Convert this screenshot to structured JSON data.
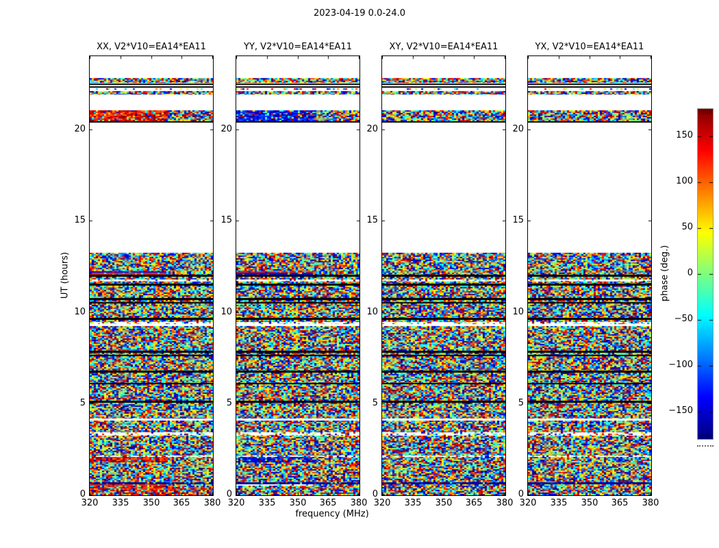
{
  "figure": {
    "title": "2023-04-19 0.0-24.0",
    "background": "#ffffff"
  },
  "axes": {
    "x": {
      "label": "frequency (MHz)",
      "range": [
        320,
        380
      ],
      "ticks": [
        {
          "value": 320,
          "label": "320"
        },
        {
          "value": 335,
          "label": "335"
        },
        {
          "value": 350,
          "label": "350"
        },
        {
          "value": 365,
          "label": "365"
        },
        {
          "value": 380,
          "label": "380"
        }
      ]
    },
    "y": {
      "label": "UT (hours)",
      "range": [
        0,
        24
      ],
      "ticks": [
        {
          "value": 0,
          "label": "0"
        },
        {
          "value": 5,
          "label": "5"
        },
        {
          "value": 10,
          "label": "10"
        },
        {
          "value": 15,
          "label": "15"
        },
        {
          "value": 20,
          "label": "20"
        }
      ]
    }
  },
  "panels": [
    {
      "pol": "XX",
      "title": "XX, V2*V10=EA14*EA11"
    },
    {
      "pol": "YY",
      "title": "YY, V2*V10=EA14*EA11"
    },
    {
      "pol": "XY",
      "title": "XY, V2*V10=EA14*EA11"
    },
    {
      "pol": "YX",
      "title": "YX, V2*V10=EA14*EA11"
    }
  ],
  "colorbar": {
    "label": "phase (deg.)",
    "range": [
      -180,
      180
    ],
    "colormap": "jet",
    "colors_top_to_bottom": [
      "#800000",
      "#ff0000",
      "#ff8000",
      "#ffff00",
      "#80ff80",
      "#00ffff",
      "#0080ff",
      "#0000ff",
      "#000080"
    ],
    "ticks": [
      {
        "value": 150,
        "label": "150"
      },
      {
        "value": 100,
        "label": "100"
      },
      {
        "value": 50,
        "label": "50"
      },
      {
        "value": 0,
        "label": "0"
      },
      {
        "value": -50,
        "label": "−50"
      },
      {
        "value": -100,
        "label": "−100"
      },
      {
        "value": -150,
        "label": "−150"
      }
    ]
  },
  "chart_data": {
    "type": "heatmap",
    "title": "2023-04-19 0.0-24.0",
    "xlabel": "frequency (MHz)",
    "ylabel": "UT (hours)",
    "x_range": [
      320,
      380
    ],
    "y_range": [
      0,
      24
    ],
    "value_label": "phase (deg.)",
    "value_range": [
      -180,
      180
    ],
    "colormap": "jet",
    "subplots": [
      "XX, V2*V10=EA14*EA11",
      "YY, V2*V10=EA14*EA11",
      "XY, V2*V10=EA14*EA11",
      "YX, V2*V10=EA14*EA11"
    ],
    "description": "Visibility phase (random noise-like) vs frequency and UT; data present UT 0-13.25 and 20.36-22.8 with scan gaps; XX shows red-dominant coherent bands, YY blue-dominant, XY/YX fully random.",
    "bands": [
      {
        "ut": [
          22.55,
          22.8
        ],
        "type": "noise"
      },
      {
        "ut": [
          22.42,
          22.49
        ],
        "type": "black"
      },
      {
        "ut": [
          22.28,
          22.35
        ],
        "type": "black"
      },
      {
        "ut": [
          22.17,
          22.24
        ],
        "type": "sparse"
      },
      {
        "ut": [
          21.9,
          22.08
        ],
        "type": "noise"
      },
      {
        "ut": [
          20.45,
          21.05
        ],
        "type": "noise",
        "bias": {
          "XX": "warm",
          "YY": "cool"
        },
        "biasFrac": 0.62
      },
      {
        "ut": [
          20.36,
          20.44
        ],
        "type": "black"
      },
      {
        "ut": [
          12.25,
          13.25
        ],
        "type": "noise"
      },
      {
        "ut": [
          12.18,
          12.25
        ],
        "type": "stripe",
        "colors": {
          "XX": "#0010ee",
          "YY": "#ee2200"
        },
        "frac": 0.62
      },
      {
        "ut": [
          12.04,
          12.18
        ],
        "type": "stripe",
        "colors": {
          "XX": "#ee2200",
          "YY": "#0010ee"
        },
        "frac": 0.62
      },
      {
        "ut": [
          11.95,
          12.04
        ],
        "type": "black"
      },
      {
        "ut": [
          11.8,
          11.95
        ],
        "type": "noise"
      },
      {
        "ut": [
          11.7,
          11.8
        ],
        "type": "sparse"
      },
      {
        "ut": [
          11.58,
          11.7
        ],
        "type": "noise"
      },
      {
        "ut": [
          11.47,
          11.58
        ],
        "type": "black"
      },
      {
        "ut": [
          10.79,
          11.47
        ],
        "type": "noise"
      },
      {
        "ut": [
          10.68,
          10.79
        ],
        "type": "black"
      },
      {
        "ut": [
          10.57,
          10.68
        ],
        "type": "noise"
      },
      {
        "ut": [
          10.5,
          10.57
        ],
        "type": "black"
      },
      {
        "ut": [
          9.7,
          10.5
        ],
        "type": "noise"
      },
      {
        "ut": [
          9.6,
          9.7
        ],
        "type": "black"
      },
      {
        "ut": [
          9.48,
          9.6
        ],
        "type": "noise"
      },
      {
        "ut": [
          9.37,
          9.48
        ],
        "type": "sparse"
      },
      {
        "ut": [
          9.26,
          9.37
        ],
        "type": "white"
      },
      {
        "ut": [
          7.9,
          9.26
        ],
        "type": "noise"
      },
      {
        "ut": [
          7.8,
          7.9
        ],
        "type": "black"
      },
      {
        "ut": [
          7.68,
          7.8
        ],
        "type": "noise"
      },
      {
        "ut": [
          7.61,
          7.68
        ],
        "type": "black"
      },
      {
        "ut": [
          6.8,
          7.61
        ],
        "type": "noise"
      },
      {
        "ut": [
          6.71,
          6.8
        ],
        "type": "black"
      },
      {
        "ut": [
          6.15,
          6.71
        ],
        "type": "noise"
      },
      {
        "ut": [
          6.06,
          6.15
        ],
        "type": "black"
      },
      {
        "ut": [
          5.15,
          6.06
        ],
        "type": "noise"
      },
      {
        "ut": [
          5.06,
          5.15
        ],
        "type": "black"
      },
      {
        "ut": [
          4.2,
          5.06
        ],
        "type": "noise"
      },
      {
        "ut": [
          4.09,
          4.2
        ],
        "type": "white"
      },
      {
        "ut": [
          3.45,
          4.09
        ],
        "type": "noise"
      },
      {
        "ut": [
          3.25,
          3.45
        ],
        "type": "sparse"
      },
      {
        "ut": [
          2.18,
          3.25
        ],
        "type": "noise"
      },
      {
        "ut": [
          2.08,
          2.18
        ],
        "type": "sparse"
      },
      {
        "ut": [
          1.8,
          2.08
        ],
        "type": "noise",
        "bias": {
          "XX": "warm",
          "YY": "cool"
        },
        "biasFrac": 0.62
      },
      {
        "ut": [
          0.72,
          1.8
        ],
        "type": "noise"
      },
      {
        "ut": [
          0.61,
          0.72
        ],
        "type": "stripe",
        "colors": {
          "XX": "#0000a0",
          "YY": "#0000a0",
          "XY": "#0000a0",
          "YX": "#0000a0"
        },
        "frac": 1.0
      },
      {
        "ut": [
          0.51,
          0.61
        ],
        "type": "stripe",
        "colors": {
          "XX": "#ee2200",
          "YY": "#ffffff"
        },
        "frac": 0.62
      },
      {
        "ut": [
          0.0,
          0.51
        ],
        "type": "noise",
        "bias": {
          "XX": "warmlight"
        },
        "biasFrac": 1.0
      }
    ]
  }
}
